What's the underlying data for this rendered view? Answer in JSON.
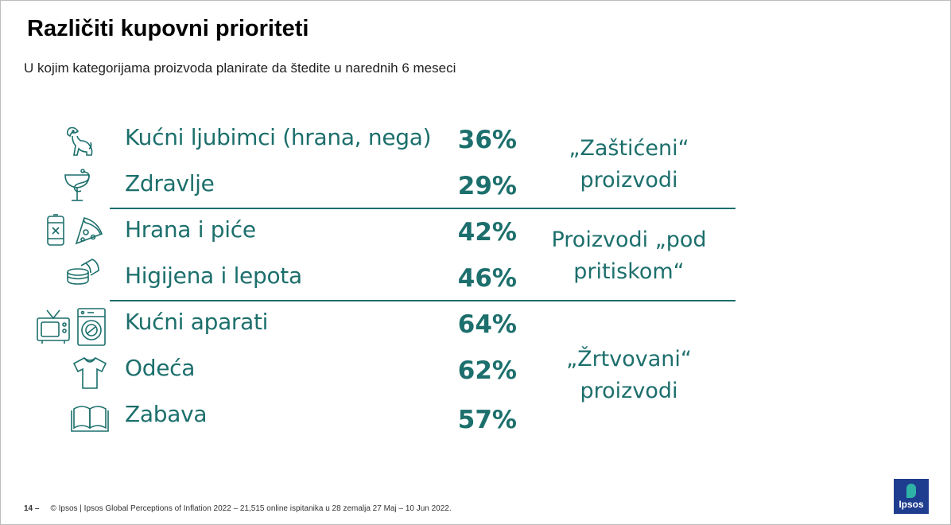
{
  "header": {
    "title": "Različiti kupovni prioriteti",
    "subtitle": "U kojim kategorijama proizvoda planirate da štedite u narednih 6 meseci"
  },
  "rows": [
    {
      "label": "Kućni ljubimci (hrana, nega)",
      "value": "36%",
      "icons": [
        "dog-icon"
      ]
    },
    {
      "label": "Zdravlje",
      "value": "29%",
      "icons": [
        "health-icon"
      ]
    },
    {
      "label": "Hrana i piće",
      "value": "42%",
      "icons": [
        "can-icon",
        "pizza-icon"
      ]
    },
    {
      "label": "Higijena i lepota",
      "value": "46%",
      "icons": [
        "cosmetics-icon"
      ]
    },
    {
      "label": "Kućni aparati",
      "value": "64%",
      "icons": [
        "tv-icon",
        "washing-machine-icon"
      ]
    },
    {
      "label": "Odeća",
      "value": "62%",
      "icons": [
        "tshirt-icon"
      ]
    },
    {
      "label": "Zabava",
      "value": "57%",
      "icons": [
        "book-icon"
      ]
    }
  ],
  "groups": [
    {
      "line1": "„Zaštićeni“",
      "line2": "proizvodi"
    },
    {
      "line1": "Proizvodi „pod",
      "line2": "pritiskom“"
    },
    {
      "line1": "„Žrtvovani“",
      "line2": "proizvodi"
    }
  ],
  "footer": {
    "page": "14 –",
    "source": "© Ipsos | Ipsos Global Perceptions of Inflation 2022 – 21,515 online ispitanika u 28 zemalja 27 Maj – 10 Jun 2022."
  },
  "logo": {
    "text": "Ipsos"
  },
  "colors": {
    "accent": "#1c6f6c",
    "logo_bg": "#1f3d8f",
    "logo_drop": "#2fb3a6"
  }
}
